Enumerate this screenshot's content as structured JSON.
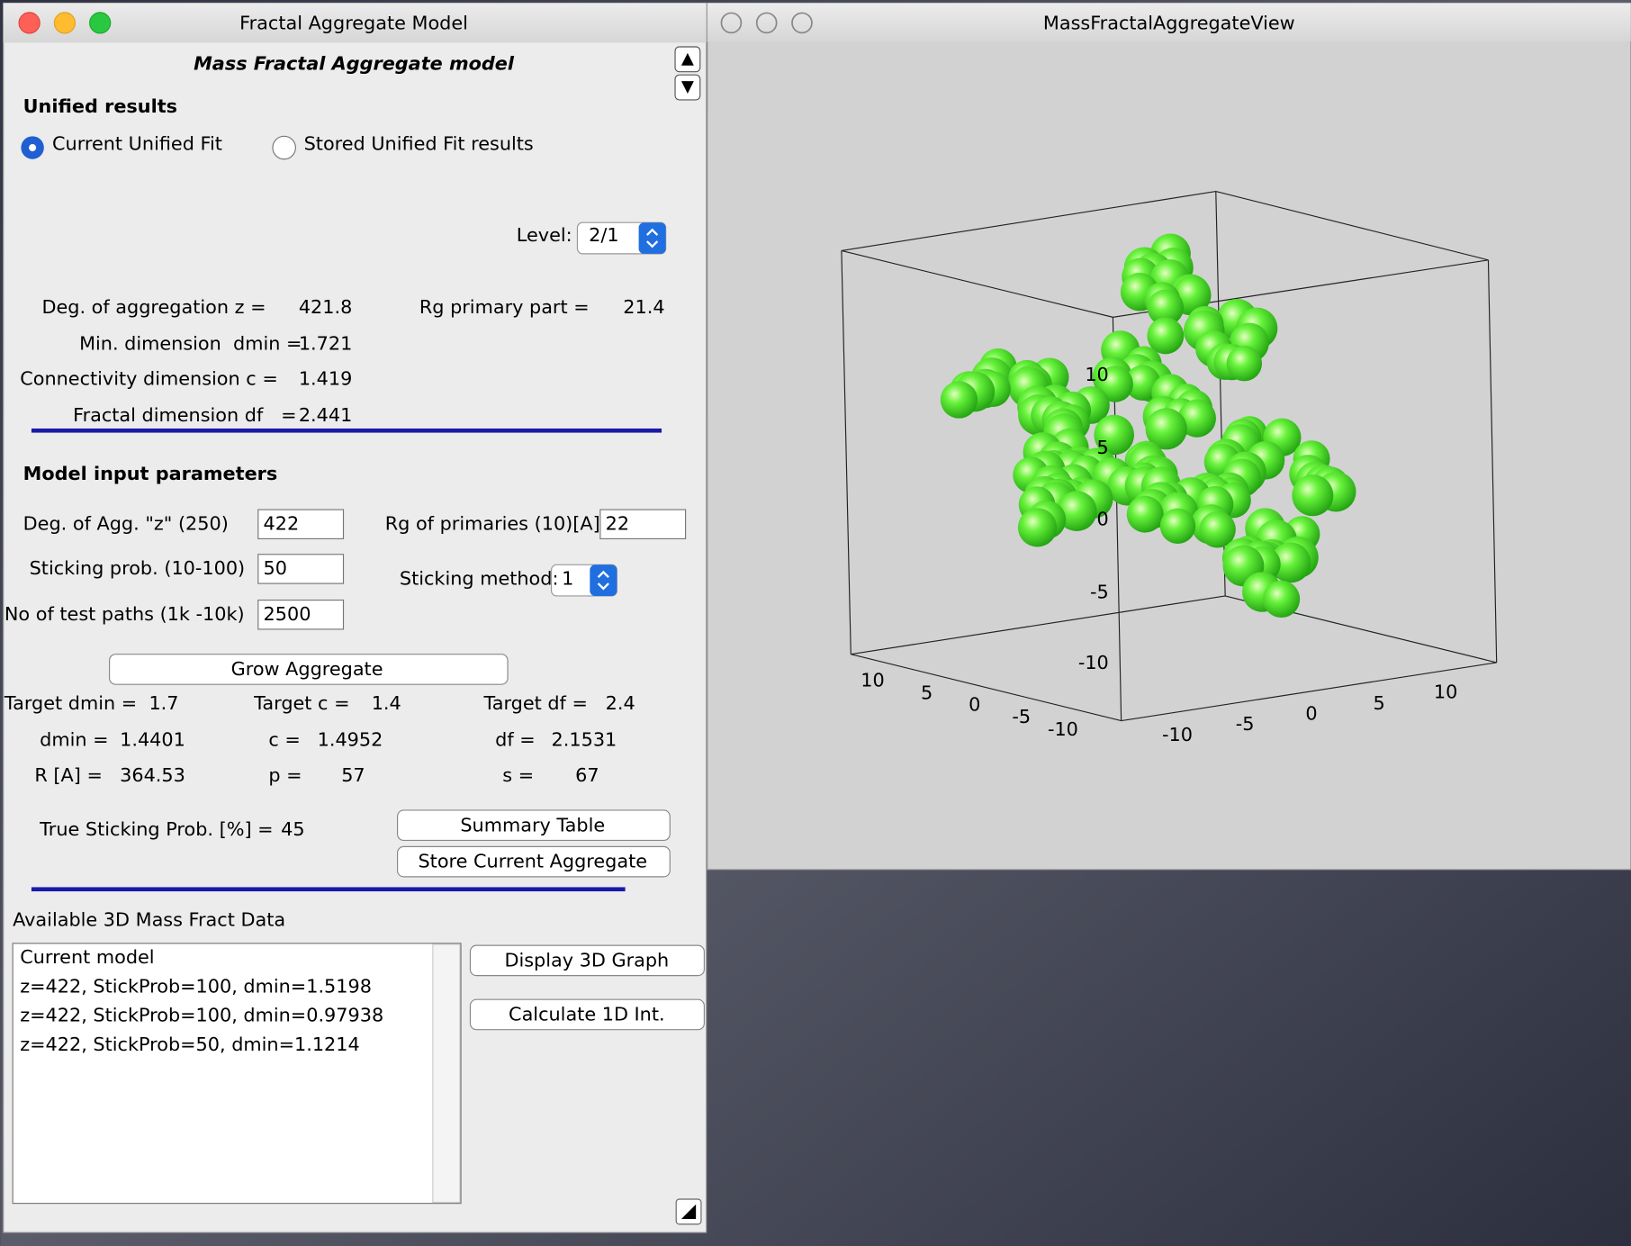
{
  "left_window": {
    "title": "Fractal Aggregate Model",
    "heading": "Mass Fractal Aggregate model",
    "unified": {
      "title": "Unified results",
      "options": [
        "Current Unified Fit",
        "Stored Unified Fit results"
      ],
      "level_label": "Level:",
      "level_value": "2/1"
    },
    "results": {
      "rows": [
        [
          "Deg. of aggregation z =",
          "421.8"
        ],
        [
          "Min. dimension  dmin =",
          "1.721"
        ],
        [
          "Connectivity dimension c =",
          "1.419"
        ],
        [
          "Fractal dimension df   =",
          "2.441"
        ]
      ],
      "rg_label": "Rg primary part =",
      "rg_value": "21.4"
    },
    "inputs": {
      "title": "Model input parameters",
      "fields": [
        {
          "label": "Deg. of Agg. \"z\" (250)",
          "value": "422"
        },
        {
          "label": "Sticking prob. (10-100)",
          "value": "50"
        },
        {
          "label": "No of test paths (1k -10k)",
          "value": "2500"
        },
        {
          "label": "Rg of primaries (10)[A]",
          "value": "22"
        }
      ],
      "method_label": "Sticking method:",
      "method_value": "1"
    },
    "grow_button": "Grow Aggregate",
    "targets": [
      [
        "Target dmin =",
        "1.7"
      ],
      [
        "Target c =",
        "1.4"
      ],
      [
        "Target df =",
        "2.4"
      ]
    ],
    "outputs": [
      [
        [
          "dmin =",
          "1.4401"
        ],
        [
          "c =",
          "1.4952"
        ],
        [
          "df =",
          "2.1531"
        ]
      ],
      [
        [
          "R [A] =",
          "364.53"
        ],
        [
          "p =",
          "57"
        ],
        [
          "s =",
          "67"
        ]
      ]
    ],
    "true_sticking": {
      "label": "True Sticking Prob. [%] =",
      "value": "45"
    },
    "buttons": [
      "Summary Table",
      "Store Current Aggregate"
    ],
    "data_title": "Available 3D Mass Fract Data",
    "data_list": [
      "Current model",
      "z=422, StickProb=100, dmin=1.5198",
      "z=422, StickProb=100, dmin=0.97938",
      "z=422, StickProb=50, dmin=1.1214"
    ],
    "data_buttons": [
      "Display 3D Graph",
      "Calculate 1D Int."
    ]
  },
  "right_window": {
    "title": "MassFractalAggregateView",
    "z_ticks": [
      "10",
      "5",
      "0",
      "-5",
      "-10"
    ],
    "x_ticks": [
      "10",
      "5",
      "0",
      "-5",
      "-10"
    ],
    "y_ticks": [
      "-10",
      "-5",
      "0",
      "5",
      "10"
    ]
  }
}
